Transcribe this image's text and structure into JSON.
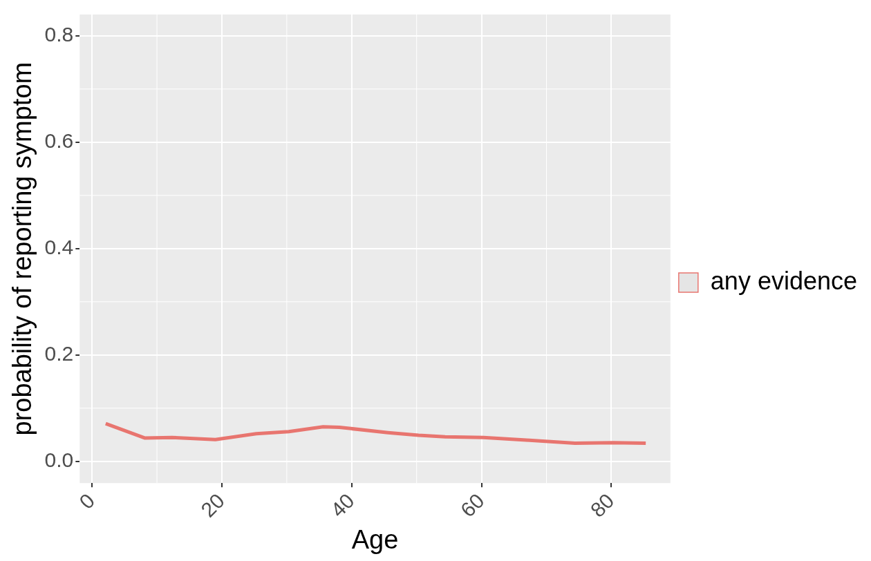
{
  "chart_data": {
    "type": "line",
    "xlabel": "Age",
    "ylabel": "probability of reporting symptom",
    "xlim": [
      -1.9,
      89.1
    ],
    "xticks": [
      0,
      20,
      40,
      60,
      80
    ],
    "ylim": [
      -0.041,
      0.84
    ],
    "yticks": [
      {
        "value": 0,
        "label": "0.0"
      },
      {
        "value": 0.2,
        "label": "0.2"
      },
      {
        "value": 0.4,
        "label": "0.4"
      },
      {
        "value": 0.6,
        "label": "0.6"
      },
      {
        "value": 0.8,
        "label": "0.8"
      }
    ],
    "grid": true,
    "legend": "right",
    "marker": "none",
    "line_style": "solid",
    "series": [
      {
        "name": "any evidence",
        "color": "#e8756f",
        "x": [
          2.1,
          8.1,
          12.3,
          19,
          25.3,
          30.3,
          35.6,
          38.1,
          45.6,
          50.3,
          54.4,
          60.3,
          66.9,
          74.4,
          80.3,
          85.3
        ],
        "values": [
          0.071,
          0.044,
          0.045,
          0.041,
          0.052,
          0.056,
          0.065,
          0.064,
          0.054,
          0.049,
          0.046,
          0.045,
          0.04,
          0.034,
          0.035,
          0.034
        ]
      }
    ]
  }
}
